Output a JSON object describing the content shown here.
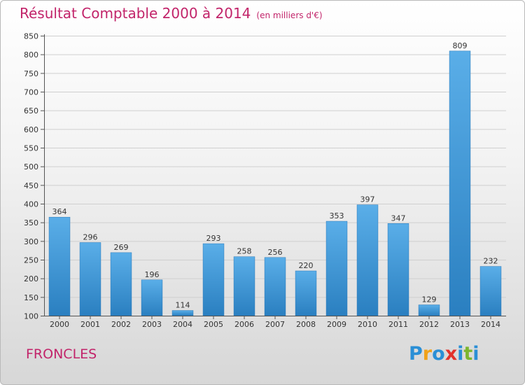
{
  "header": {
    "title": "Résultat Comptable 2000 à 2014",
    "subtitle": "(en milliers d'€)"
  },
  "city": "FRONCLES",
  "logo": {
    "text": "Proxiti",
    "letters": [
      {
        "ch": "P",
        "color": "#2a8fd6"
      },
      {
        "ch": "r",
        "color": "#f0a21a"
      },
      {
        "ch": "o",
        "color": "#2a8fd6"
      },
      {
        "ch": "x",
        "color": "#e2322c"
      },
      {
        "ch": "i",
        "color": "#2a8fd6"
      },
      {
        "ch": "t",
        "color": "#7cb62f"
      },
      {
        "ch": "i",
        "color": "#2a8fd6"
      }
    ]
  },
  "chart_data": {
    "type": "bar",
    "title": "Résultat Comptable 2000 à 2014",
    "xlabel": "",
    "ylabel": "",
    "categories": [
      "2000",
      "2001",
      "2002",
      "2003",
      "2004",
      "2005",
      "2006",
      "2007",
      "2008",
      "2009",
      "2010",
      "2011",
      "2012",
      "2013",
      "2014"
    ],
    "values": [
      364,
      296,
      269,
      196,
      114,
      293,
      258,
      256,
      220,
      353,
      397,
      347,
      129,
      809,
      232
    ],
    "ylim": [
      100,
      850
    ],
    "yticks": [
      100,
      150,
      200,
      250,
      300,
      350,
      400,
      450,
      500,
      550,
      600,
      650,
      700,
      750,
      800,
      850
    ],
    "grid": true,
    "bar_color_top": "#5aaee8",
    "bar_color_bottom": "#2a7fc0"
  }
}
